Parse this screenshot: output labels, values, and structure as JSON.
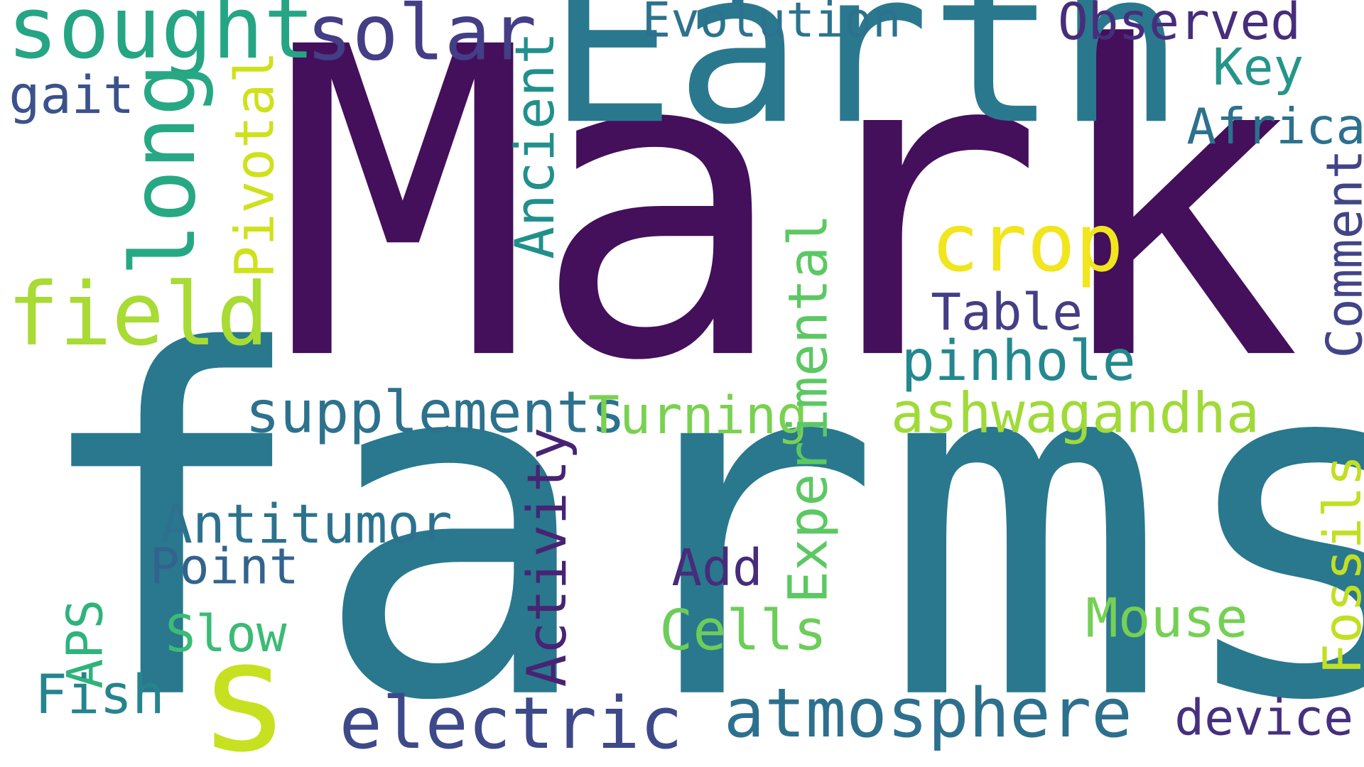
{
  "words": {
    "mark": {
      "text": "Mark",
      "color": "#440f5b"
    },
    "farms": {
      "text": "farms",
      "color": "#29788e"
    },
    "earth": {
      "text": "Earth",
      "color": "#2a788e"
    },
    "s": {
      "text": "s",
      "color": "#c7e120"
    },
    "sought": {
      "text": "sought",
      "color": "#25a584"
    },
    "solar": {
      "text": "solar",
      "color": "#433e85"
    },
    "evolution": {
      "text": "Evolution",
      "color": "#2c728e"
    },
    "observed": {
      "text": "Observed",
      "color": "#472d7b"
    },
    "key": {
      "text": "Key",
      "color": "#25958a"
    },
    "africa": {
      "text": "Africa",
      "color": "#2c718e"
    },
    "gait": {
      "text": "gait",
      "color": "#3b528b"
    },
    "long": {
      "text": "long",
      "color": "#27a884"
    },
    "pivotal": {
      "text": "Pivotal",
      "color": "#cfe11c"
    },
    "ancient": {
      "text": "Ancient",
      "color": "#21908d"
    },
    "field": {
      "text": "field",
      "color": "#a8db34"
    },
    "crop": {
      "text": "crop",
      "color": "#f1e51d"
    },
    "table": {
      "text": "Table",
      "color": "#433e85"
    },
    "pinhole": {
      "text": "pinhole",
      "color": "#23898e"
    },
    "comment": {
      "text": "Comment",
      "color": "#414487"
    },
    "supplements": {
      "text": "supplements",
      "color": "#2c728e"
    },
    "turning": {
      "text": "Turning",
      "color": "#7ad151"
    },
    "ashwagandha": {
      "text": "ashwagandha",
      "color": "#a0da39"
    },
    "experimental": {
      "text": "Experimental",
      "color": "#5cc863"
    },
    "activity": {
      "text": "Activity",
      "color": "#482374"
    },
    "fossils": {
      "text": "Fossils",
      "color": "#c2df23"
    },
    "antitumor": {
      "text": "Antitumor",
      "color": "#2c728e"
    },
    "point": {
      "text": "Point",
      "color": "#33638d"
    },
    "add": {
      "text": "Add",
      "color": "#472c7a"
    },
    "aps": {
      "text": "APS",
      "color": "#2eb37c"
    },
    "slow": {
      "text": "Slow",
      "color": "#3bbb75"
    },
    "mouse": {
      "text": "Mouse",
      "color": "#75d054"
    },
    "cells": {
      "text": "Cells",
      "color": "#6ccd5a"
    },
    "fish": {
      "text": "Fish",
      "color": "#25848e"
    },
    "electric": {
      "text": "electric",
      "color": "#3e4989"
    },
    "atmosphere": {
      "text": "atmosphere",
      "color": "#2d708e"
    },
    "device": {
      "text": "device",
      "color": "#46307e"
    }
  }
}
